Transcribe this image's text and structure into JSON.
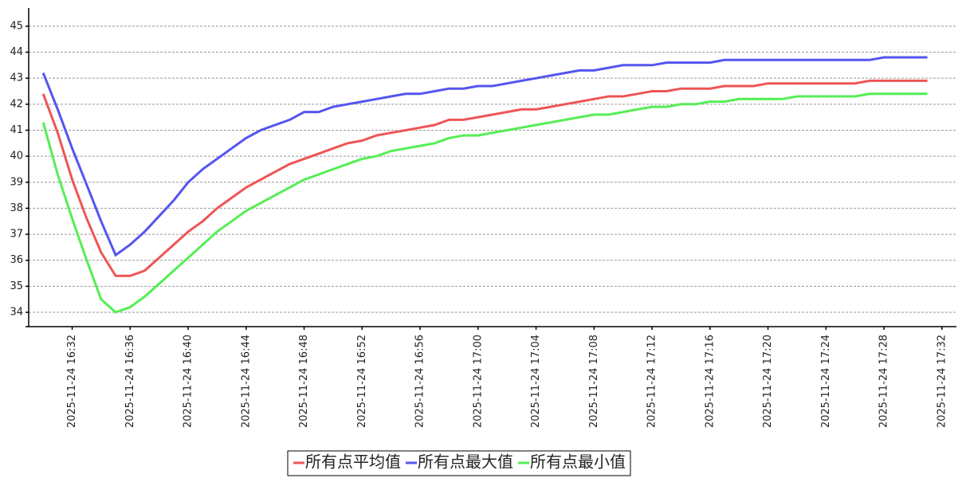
{
  "chart_data": {
    "type": "line",
    "x": [
      "2025-11-24 16:30",
      "2025-11-24 16:31",
      "2025-11-24 16:32",
      "2025-11-24 16:33",
      "2025-11-24 16:34",
      "2025-11-24 16:35",
      "2025-11-24 16:36",
      "2025-11-24 16:37",
      "2025-11-24 16:38",
      "2025-11-24 16:39",
      "2025-11-24 16:40",
      "2025-11-24 16:41",
      "2025-11-24 16:42",
      "2025-11-24 16:43",
      "2025-11-24 16:44",
      "2025-11-24 16:45",
      "2025-11-24 16:46",
      "2025-11-24 16:47",
      "2025-11-24 16:48",
      "2025-11-24 16:49",
      "2025-11-24 16:50",
      "2025-11-24 16:51",
      "2025-11-24 16:52",
      "2025-11-24 16:53",
      "2025-11-24 16:54",
      "2025-11-24 16:55",
      "2025-11-24 16:56",
      "2025-11-24 16:57",
      "2025-11-24 16:58",
      "2025-11-24 16:59",
      "2025-11-24 17:00",
      "2025-11-24 17:01",
      "2025-11-24 17:02",
      "2025-11-24 17:03",
      "2025-11-24 17:04",
      "2025-11-24 17:05",
      "2025-11-24 17:06",
      "2025-11-24 17:07",
      "2025-11-24 17:08",
      "2025-11-24 17:09",
      "2025-11-24 17:10",
      "2025-11-24 17:11",
      "2025-11-24 17:12",
      "2025-11-24 17:13",
      "2025-11-24 17:14",
      "2025-11-24 17:15",
      "2025-11-24 17:16",
      "2025-11-24 17:17",
      "2025-11-24 17:18",
      "2025-11-24 17:19",
      "2025-11-24 17:20",
      "2025-11-24 17:21",
      "2025-11-24 17:22",
      "2025-11-24 17:23",
      "2025-11-24 17:24",
      "2025-11-24 17:25",
      "2025-11-24 17:26",
      "2025-11-24 17:27",
      "2025-11-24 17:28",
      "2025-11-24 17:29",
      "2025-11-24 17:30",
      "2025-11-24 17:31"
    ],
    "series": [
      {
        "name": "所有点平均值",
        "color": "#ee5555",
        "values": [
          42.4,
          40.9,
          39.1,
          37.6,
          36.3,
          35.4,
          35.4,
          35.6,
          36.1,
          36.6,
          37.1,
          37.5,
          38.0,
          38.4,
          38.8,
          39.1,
          39.4,
          39.7,
          39.9,
          40.1,
          40.3,
          40.5,
          40.6,
          40.8,
          40.9,
          41.0,
          41.1,
          41.2,
          41.4,
          41.4,
          41.5,
          41.6,
          41.7,
          41.8,
          41.8,
          41.9,
          42.0,
          42.1,
          42.2,
          42.3,
          42.3,
          42.4,
          42.5,
          42.5,
          42.6,
          42.6,
          42.6,
          42.7,
          42.7,
          42.7,
          42.8,
          42.8,
          42.8,
          42.8,
          42.8,
          42.8,
          42.8,
          42.9,
          42.9,
          42.9,
          42.9,
          42.9
        ]
      },
      {
        "name": "所有点最大值",
        "color": "#5555ee",
        "values": [
          43.2,
          41.8,
          40.3,
          38.9,
          37.5,
          36.2,
          36.6,
          37.1,
          37.7,
          38.3,
          39.0,
          39.5,
          39.9,
          40.3,
          40.7,
          41.0,
          41.2,
          41.4,
          41.7,
          41.7,
          41.9,
          42.0,
          42.1,
          42.2,
          42.3,
          42.4,
          42.4,
          42.5,
          42.6,
          42.6,
          42.7,
          42.7,
          42.8,
          42.9,
          43.0,
          43.1,
          43.2,
          43.3,
          43.3,
          43.4,
          43.5,
          43.5,
          43.5,
          43.6,
          43.6,
          43.6,
          43.6,
          43.7,
          43.7,
          43.7,
          43.7,
          43.7,
          43.7,
          43.7,
          43.7,
          43.7,
          43.7,
          43.7,
          43.8,
          43.8,
          43.8,
          43.8
        ]
      },
      {
        "name": "所有点最小值",
        "color": "#55ee55",
        "values": [
          41.3,
          39.3,
          37.6,
          36.0,
          34.5,
          34.0,
          34.2,
          34.6,
          35.1,
          35.6,
          36.1,
          36.6,
          37.1,
          37.5,
          37.9,
          38.2,
          38.5,
          38.8,
          39.1,
          39.3,
          39.5,
          39.7,
          39.9,
          40.0,
          40.2,
          40.3,
          40.4,
          40.5,
          40.7,
          40.8,
          40.8,
          40.9,
          41.0,
          41.1,
          41.2,
          41.3,
          41.4,
          41.5,
          41.6,
          41.6,
          41.7,
          41.8,
          41.9,
          41.9,
          42.0,
          42.0,
          42.1,
          42.1,
          42.2,
          42.2,
          42.2,
          42.2,
          42.3,
          42.3,
          42.3,
          42.3,
          42.3,
          42.4,
          42.4,
          42.4,
          42.4,
          42.4
        ]
      }
    ],
    "xlim": [
      "2025-11-24 16:29",
      "2025-11-24 17:33"
    ],
    "xticks": [
      "2025-11-24 16:32",
      "2025-11-24 16:36",
      "2025-11-24 16:40",
      "2025-11-24 16:44",
      "2025-11-24 16:48",
      "2025-11-24 16:52",
      "2025-11-24 16:56",
      "2025-11-24 17:00",
      "2025-11-24 17:04",
      "2025-11-24 17:08",
      "2025-11-24 17:12",
      "2025-11-24 17:16",
      "2025-11-24 17:20",
      "2025-11-24 17:24",
      "2025-11-24 17:28",
      "2025-11-24 17:32"
    ],
    "ylim": [
      33.45,
      45.7
    ],
    "yticks": [
      34,
      35,
      36,
      37,
      38,
      39,
      40,
      41,
      42,
      43,
      44,
      45
    ],
    "grid": true
  }
}
